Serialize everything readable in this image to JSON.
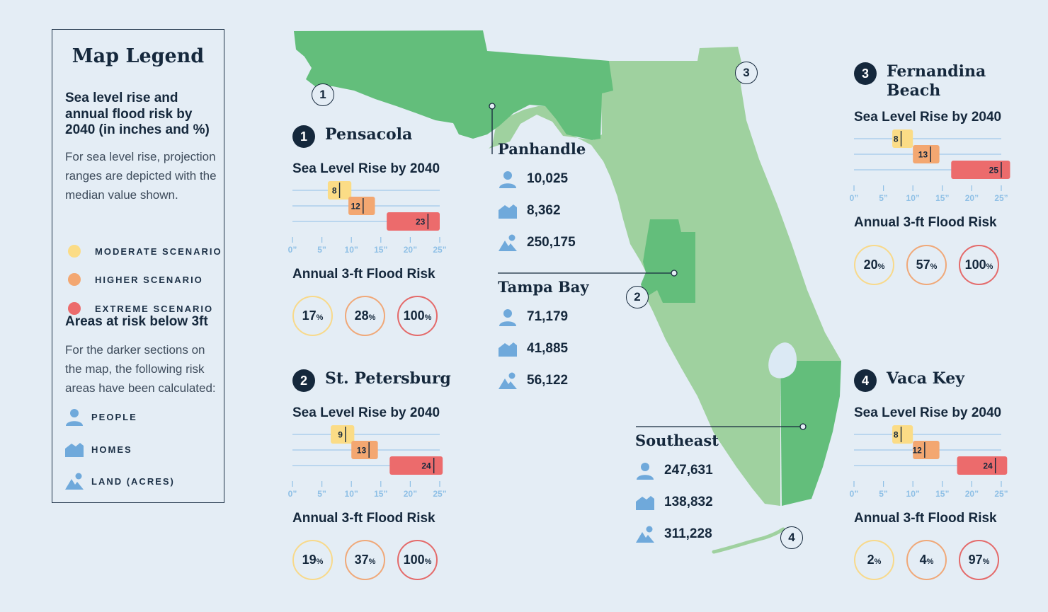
{
  "legend": {
    "title": "Map Legend",
    "heading1": "Sea level rise and annual flood risk by 2040 (in inches and %)",
    "desc1": "For sea level rise, projection ranges are depicted with the median value shown.",
    "scenarios": [
      {
        "label": "MODERATE SCENARIO",
        "color": "#fbdc86"
      },
      {
        "label": "HIGHER SCENARIO",
        "color": "#f3a771"
      },
      {
        "label": "EXTREME SCENARIO",
        "color": "#ec6b6c"
      }
    ],
    "heading2": "Areas at risk below 3ft",
    "desc2": "For the darker sections on the map, the following risk areas have been calculated:",
    "risk_items": [
      {
        "label": "PEOPLE",
        "icon": "person-icon"
      },
      {
        "label": "HOMES",
        "icon": "house-icon"
      },
      {
        "label": "LAND (ACRES)",
        "icon": "land-icon"
      }
    ]
  },
  "common": {
    "slr_title": "Sea Level Rise by 2040",
    "flood_title": "Annual 3-ft Flood Risk",
    "ticks": [
      "0”",
      "5”",
      "10”",
      "15”",
      "20”",
      "25”"
    ],
    "pct": "%"
  },
  "colors": {
    "moderate": "#fbdc86",
    "higher": "#f3a771",
    "extreme": "#ec6b6c",
    "axis": "#8fc0e6",
    "map_light": "#9fd19f",
    "map_dark": "#63be7b",
    "lake": "#dbe9f4"
  },
  "sites": [
    {
      "num": "1",
      "name": "Pensacola",
      "slr": [
        {
          "scenario": "moderate",
          "low": 6,
          "high": 10,
          "median": 8
        },
        {
          "scenario": "higher",
          "low": 9.5,
          "high": 14,
          "median": 12
        },
        {
          "scenario": "extreme",
          "low": 16,
          "high": 25,
          "median": 23
        }
      ],
      "flood": [
        "17",
        "28",
        "100"
      ]
    },
    {
      "num": "2",
      "name": "St. Petersburg",
      "slr": [
        {
          "scenario": "moderate",
          "low": 6.5,
          "high": 10.5,
          "median": 9
        },
        {
          "scenario": "higher",
          "low": 10,
          "high": 14.5,
          "median": 13
        },
        {
          "scenario": "extreme",
          "low": 16.5,
          "high": 25.5,
          "median": 24
        }
      ],
      "flood": [
        "19",
        "37",
        "100"
      ]
    },
    {
      "num": "3",
      "name": "Fernandina Beach",
      "slr": [
        {
          "scenario": "moderate",
          "low": 6.5,
          "high": 10,
          "median": 8
        },
        {
          "scenario": "higher",
          "low": 10,
          "high": 14.5,
          "median": 13
        },
        {
          "scenario": "extreme",
          "low": 16.5,
          "high": 26.5,
          "median": 25
        }
      ],
      "flood": [
        "20",
        "57",
        "100"
      ]
    },
    {
      "num": "4",
      "name": "Vaca Key",
      "slr": [
        {
          "scenario": "moderate",
          "low": 6.5,
          "high": 10,
          "median": 8
        },
        {
          "scenario": "higher",
          "low": 10,
          "high": 14.5,
          "median": 12
        },
        {
          "scenario": "extreme",
          "low": 17.5,
          "high": 26,
          "median": 24
        }
      ],
      "flood": [
        "2",
        "4",
        "97"
      ]
    }
  ],
  "regions": [
    {
      "name": "Panhandle",
      "people": "10,025",
      "homes": "8,362",
      "land": "250,175"
    },
    {
      "name": "Tampa Bay",
      "people": "71,179",
      "homes": "41,885",
      "land": "56,122"
    },
    {
      "name": "Southeast",
      "people": "247,631",
      "homes": "138,832",
      "land": "311,228"
    }
  ],
  "pins": [
    "1",
    "2",
    "3",
    "4"
  ]
}
